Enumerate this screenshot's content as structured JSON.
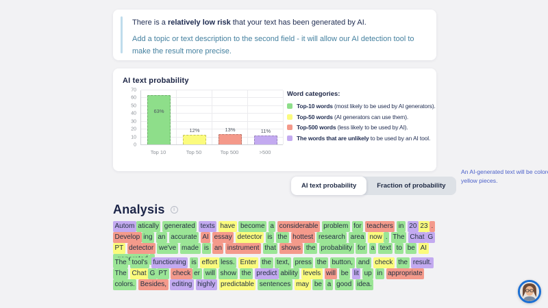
{
  "page": {
    "background": "#f2f2f4"
  },
  "risk_card": {
    "headline_prefix": "There is a ",
    "headline_bold": "relatively low risk",
    "headline_suffix": " that your text has been generated by AI.",
    "subtext": "Add a topic or text description to the second field - it will allow our AI detection tool to make the result more precise.",
    "accent_color": "#bfdcec",
    "subtext_color": "#44809f"
  },
  "chart_card": {
    "title": "AI text probability",
    "legend_title": "Word categories:",
    "legend": [
      {
        "color": "#8ede8a",
        "bold": "Top-10 words",
        "rest": " (most likely to be used by AI generators)."
      },
      {
        "color": "#fbfb7d",
        "bold": "Top-50 words",
        "rest": " (AI generators can use them)."
      },
      {
        "color": "#f4998a",
        "bold": "Top-500 words",
        "rest": " (less likely to be used by AI)."
      },
      {
        "color": "#c3aaf0",
        "bold": "The words that are unlikely",
        "rest": " to be used by an AI tool."
      }
    ],
    "note": "An AI-generated text will be colored green with a few yellow pieces.",
    "note_color": "#4a5fc9"
  },
  "chart_data": {
    "type": "bar",
    "title": "AI text probability",
    "categories": [
      "Top 10",
      "Top 50",
      "Top 500",
      ">500"
    ],
    "values": [
      63,
      12,
      13,
      11
    ],
    "value_labels": [
      "63%",
      "12%",
      "13%",
      "11%"
    ],
    "bar_colors": [
      "#8ede8a",
      "#fbfb7d",
      "#f4998a",
      "#c3aaf0"
    ],
    "xlabel": "",
    "ylabel": "",
    "ylim": [
      0,
      70
    ],
    "yticks": [
      0,
      10,
      20,
      30,
      40,
      50,
      60,
      70
    ],
    "grid": true,
    "legend_position": "right"
  },
  "tabs": [
    {
      "label": "AI text probability",
      "active": true
    },
    {
      "label": "Fraction of probability",
      "active": false
    }
  ],
  "analysis": {
    "title": "Analysis",
    "highlight_colors": {
      "g": "#9be596",
      "y": "#fbfb7d",
      "r": "#f49a8b",
      "p": "#c3aaf0"
    },
    "paragraphs": [
      [
        {
          "t": "Autom",
          "c": "p"
        },
        {
          "t": "atically",
          "c": "g",
          "j": 1
        },
        {
          "t": "generated",
          "c": "g"
        },
        {
          "t": "texts",
          "c": "p"
        },
        {
          "t": "have",
          "c": "y"
        },
        {
          "t": "become",
          "c": "g"
        },
        {
          "t": "a",
          "c": "g"
        },
        {
          "t": "considerable",
          "c": "r"
        },
        {
          "t": "problem",
          "c": "g"
        },
        {
          "t": "for",
          "c": "g"
        },
        {
          "t": "teachers",
          "c": "r"
        },
        {
          "t": "in",
          "c": "g"
        },
        {
          "t": "20",
          "c": "p"
        },
        {
          "t": "23",
          "c": "y",
          "j": 1
        },
        {
          "t": ".",
          "c": "r",
          "j": 1
        },
        {
          "t": "Develop",
          "c": "r"
        },
        {
          "t": "ing",
          "c": "g",
          "j": 1
        },
        {
          "t": "an",
          "c": "g"
        },
        {
          "t": "accurate",
          "c": "g"
        },
        {
          "t": "AI",
          "c": "r"
        },
        {
          "t": "essay",
          "c": "r"
        },
        {
          "t": "detector",
          "c": "y"
        },
        {
          "t": "is",
          "c": "g"
        },
        {
          "t": "the",
          "c": "g"
        },
        {
          "t": "hottest",
          "c": "r"
        },
        {
          "t": "research",
          "c": "g"
        },
        {
          "t": "area",
          "c": "g"
        },
        {
          "t": "now",
          "c": "y"
        },
        {
          "t": ".",
          "c": "g",
          "j": 1
        },
        {
          "t": "The",
          "c": "g"
        },
        {
          "t": "Chat",
          "c": "p"
        },
        {
          "t": "G",
          "c": "p",
          "j": 1
        },
        {
          "t": "PT",
          "c": "y",
          "j": 1
        },
        {
          "t": "detector",
          "c": "r"
        },
        {
          "t": "we've",
          "c": "g"
        },
        {
          "t": "made",
          "c": "g"
        },
        {
          "t": "is",
          "c": "g"
        },
        {
          "t": "an",
          "c": "r"
        },
        {
          "t": "instrument",
          "c": "r"
        },
        {
          "t": "that",
          "c": "g"
        },
        {
          "t": "shows",
          "c": "r"
        },
        {
          "t": "the",
          "c": "g"
        },
        {
          "t": "probability",
          "c": "g"
        },
        {
          "t": "for",
          "c": "g"
        },
        {
          "t": "a",
          "c": "g"
        },
        {
          "t": "text",
          "c": "g"
        },
        {
          "t": "to",
          "c": "g"
        },
        {
          "t": "be",
          "c": "g"
        },
        {
          "t": "AI",
          "c": "y"
        },
        {
          "t": "-generated",
          "c": "g",
          "j": 1
        },
        {
          "t": ".",
          "c": "g",
          "j": 1
        }
      ],
      [
        {
          "t": "The",
          "c": "g"
        },
        {
          "t": "tool's",
          "c": "g"
        },
        {
          "t": "functioning",
          "c": "p"
        },
        {
          "t": "is",
          "c": "g"
        },
        {
          "t": "effort",
          "c": "y"
        },
        {
          "t": "less.",
          "c": "g",
          "j": 1
        },
        {
          "t": "Enter",
          "c": "y"
        },
        {
          "t": "the",
          "c": "g"
        },
        {
          "t": "text,",
          "c": "g"
        },
        {
          "t": "press",
          "c": "g"
        },
        {
          "t": "the",
          "c": "g"
        },
        {
          "t": "button,",
          "c": "g"
        },
        {
          "t": "and",
          "c": "g"
        },
        {
          "t": "check",
          "c": "y"
        },
        {
          "t": "the",
          "c": "g"
        },
        {
          "t": "result.",
          "c": "p"
        },
        {
          "t": "The",
          "c": "g"
        },
        {
          "t": "Chat",
          "c": "y"
        },
        {
          "t": "G",
          "c": "g",
          "j": 1
        },
        {
          "t": "PT",
          "c": "g",
          "j": 1
        },
        {
          "t": "check",
          "c": "r"
        },
        {
          "t": "er",
          "c": "g",
          "j": 1
        },
        {
          "t": "will",
          "c": "g"
        },
        {
          "t": "show",
          "c": "g"
        },
        {
          "t": "the",
          "c": "g"
        },
        {
          "t": "predict",
          "c": "p"
        },
        {
          "t": "ability",
          "c": "g",
          "j": 1
        },
        {
          "t": "levels",
          "c": "y"
        },
        {
          "t": "will",
          "c": "r"
        },
        {
          "t": "be",
          "c": "g"
        },
        {
          "t": "lit",
          "c": "p"
        },
        {
          "t": "up",
          "c": "g"
        },
        {
          "t": "in",
          "c": "g"
        },
        {
          "t": "appropriate",
          "c": "r"
        },
        {
          "t": "colors.",
          "c": "g"
        },
        {
          "t": "Besides,",
          "c": "r"
        },
        {
          "t": "editing",
          "c": "p"
        },
        {
          "t": "highly",
          "c": "p"
        },
        {
          "t": "predictable",
          "c": "y"
        },
        {
          "t": "sentences",
          "c": "g"
        },
        {
          "t": "may",
          "c": "y"
        },
        {
          "t": "be",
          "c": "g"
        },
        {
          "t": "a",
          "c": "g"
        },
        {
          "t": "good",
          "c": "g"
        },
        {
          "t": "idea.",
          "c": "g"
        }
      ]
    ]
  },
  "avatar": {
    "ring_color": "#1a6fd4"
  }
}
